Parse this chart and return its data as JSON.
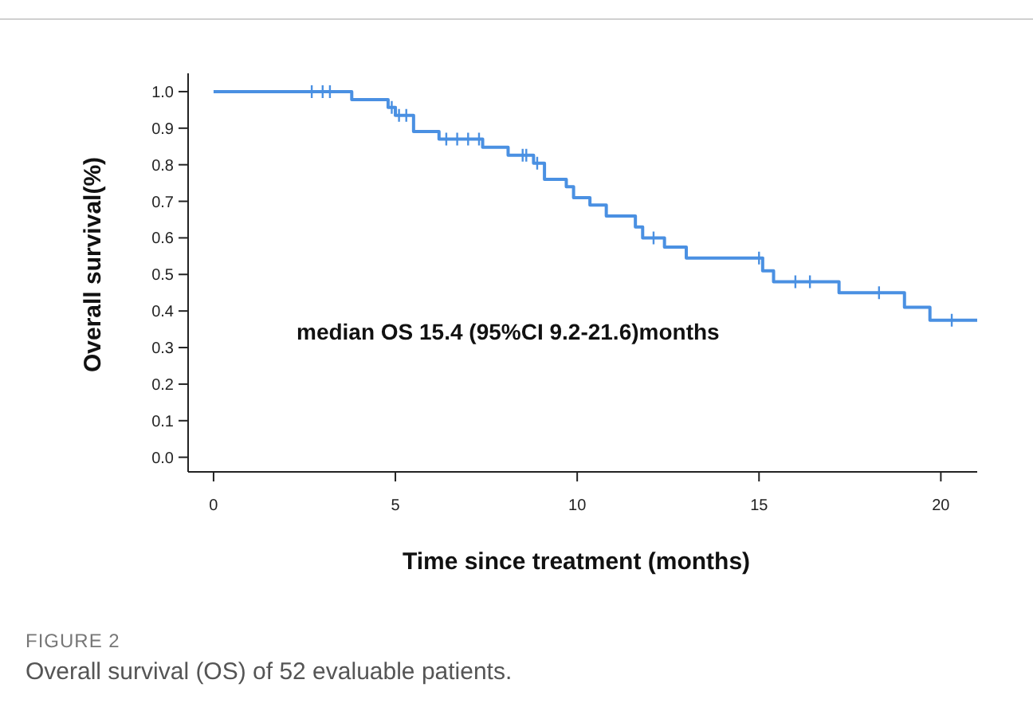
{
  "chart_data": {
    "type": "step",
    "xlabel": "Time since treatment (months)",
    "ylabel": "Overall survival(%)",
    "annotations": [
      "median OS 15.4 (95%CI 9.2-21.6)months",
      "FIGURE 2",
      "Overall survival (OS) of 52 evaluable patients."
    ],
    "xlim": [
      -0.7,
      21
    ],
    "xticks": [
      0,
      5,
      10,
      15,
      20
    ],
    "ylim": [
      -0.04,
      1.05
    ],
    "yticks": [
      {
        "value": 0,
        "label": "0.0"
      },
      0.1,
      0.2,
      0.3,
      0.4,
      0.5,
      0.6,
      0.7,
      0.8,
      0.9,
      {
        "value": 1,
        "label": "1.0"
      }
    ],
    "grid": false,
    "series": [
      {
        "color": "#4a90e2",
        "marker": "none",
        "x": [
          0,
          3.8,
          4.8,
          5.0,
          5.5,
          6.2,
          7.4,
          8.1,
          8.8,
          9.1,
          9.7,
          9.9,
          10.35,
          10.8,
          11.6,
          11.8,
          12.4,
          13.0,
          15.1,
          15.4,
          17.2,
          19.0,
          19.7,
          21.0
        ],
        "values": [
          1.0,
          0.978,
          0.957,
          0.935,
          0.891,
          0.87,
          0.848,
          0.826,
          0.804,
          0.76,
          0.74,
          0.71,
          0.69,
          0.66,
          0.63,
          0.6,
          0.575,
          0.545,
          0.51,
          0.48,
          0.45,
          0.41,
          0.375,
          0.375
        ]
      },
      {
        "type": "scatter",
        "color": "#4a90e2",
        "marker": "cross",
        "x": [
          2.7,
          3.0,
          3.2,
          4.9,
          5.1,
          5.3,
          6.4,
          6.7,
          7.0,
          7.3,
          8.5,
          8.6,
          8.9,
          12.1,
          15.0,
          16.0,
          16.4,
          18.3,
          20.3
        ],
        "values": [
          1.0,
          1.0,
          1.0,
          0.957,
          0.935,
          0.935,
          0.87,
          0.87,
          0.87,
          0.87,
          0.826,
          0.826,
          0.804,
          0.6,
          0.545,
          0.48,
          0.48,
          0.45,
          0.375
        ]
      }
    ]
  }
}
